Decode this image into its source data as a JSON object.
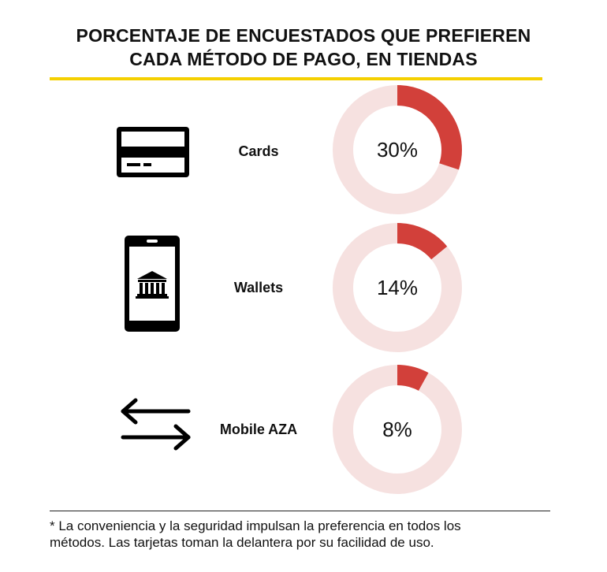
{
  "chart_data": {
    "type": "pie",
    "title_lines": [
      "PORCENTAJE DE ENCUESTADOS QUE PREFIEREN",
      "CADA MÉTODO DE PAGO, EN TIENDAS"
    ],
    "categories": [
      "Cards",
      "Wallets",
      "Mobile AZA"
    ],
    "values": [
      30,
      14,
      8
    ],
    "labels": [
      "30%",
      "14%",
      "8%"
    ],
    "unit": "%",
    "colors": {
      "filled": "#d2403a",
      "remaining": "#f6e1e0",
      "accent_rule": "#f5d000"
    }
  },
  "icons": [
    "credit-card-icon",
    "mobile-bank-icon",
    "transfer-arrows-icon"
  ],
  "footnote_lines": [
    "* La conveniencia y la seguridad impulsan la preferencia en todos los",
    "métodos. Las tarjetas toman la delantera por su facilidad de uso."
  ]
}
